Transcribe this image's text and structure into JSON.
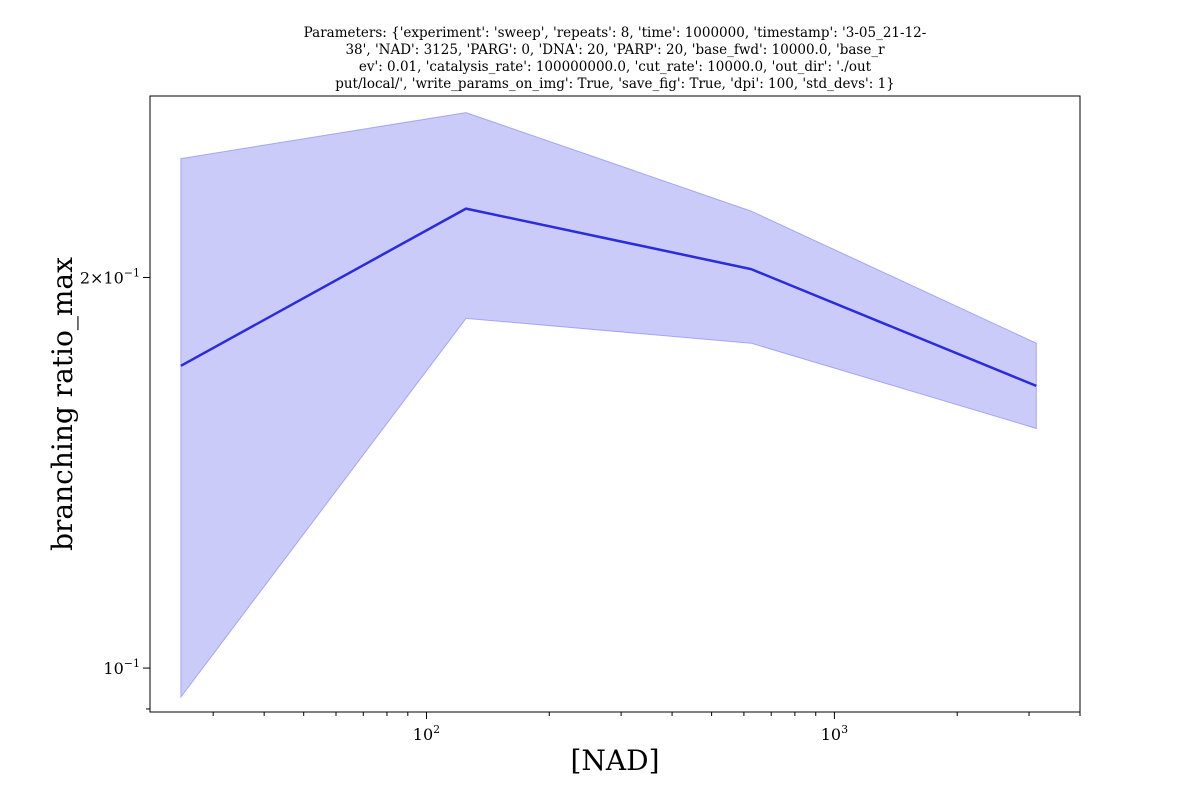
{
  "chart_data": {
    "type": "line",
    "title_lines": [
      "Parameters: {'experiment': 'sweep', 'repeats': 8, 'time': 1000000, 'timestamp': '3-05_21-12-",
      "38', 'NAD': 3125, 'PARG': 0, 'DNA': 20, 'PARP': 20, 'base_fwd': 10000.0, 'base_r",
      "ev': 0.01, 'catalysis_rate': 100000000.0, 'cut_rate': 10000.0, 'out_dir': './out",
      "put/local/', 'write_params_on_img': True, 'save_fig': True, 'dpi': 100, 'std_devs': 1}"
    ],
    "xlabel": "[NAD]",
    "ylabel": "branching ratio_max",
    "xscale": "log",
    "yscale": "log",
    "xlim": [
      21,
      4000
    ],
    "ylim": [
      0.0925,
      0.276
    ],
    "x_tick_labels": [
      {
        "base": "10",
        "exp": "2",
        "value": 100
      },
      {
        "base": "10",
        "exp": "3",
        "value": 1000
      }
    ],
    "y_tick_labels": [
      {
        "mantissa": "2×10",
        "exp": "−1",
        "value": 0.2
      },
      {
        "mantissa": "10",
        "exp": "−1",
        "value": 0.1
      }
    ],
    "series": [
      {
        "x": [
          25,
          125,
          625,
          3125
        ],
        "values": [
          0.171,
          0.226,
          0.203,
          0.165
        ],
        "upper": [
          0.247,
          0.268,
          0.225,
          0.178
        ],
        "lower": [
          0.095,
          0.186,
          0.178,
          0.153
        ],
        "color": "#2b2bdf",
        "band_color": "#8c8cf5"
      }
    ],
    "grid": false
  }
}
